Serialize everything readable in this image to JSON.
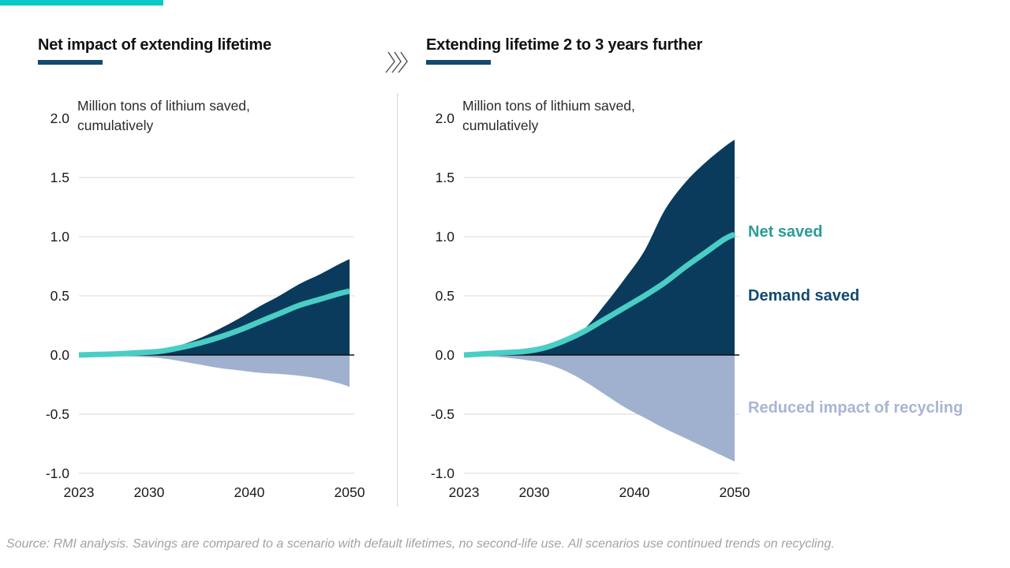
{
  "page": {
    "source_note": "Source: RMI analysis. Savings are compared to a scenario with default lifetimes, no second-life use. All scenarios use continued trends on recycling."
  },
  "colors": {
    "accent_teal": "#0cc9c5",
    "navy": "#0a3a5c",
    "navy_text": "#134a70",
    "teal_line": "#49cec5",
    "teal_text": "#2a9d96",
    "light_blue": "#9fb1ce",
    "light_blue_text": "#a8b6d3",
    "grid": "#d8d8d8",
    "zero_line": "#0d1117",
    "divider": "#d2d2d2"
  },
  "icons": {
    "separator": "triple-chevron-right-icon"
  },
  "legend": [
    {
      "label": "Net saved",
      "color": "#2a9d96"
    },
    {
      "label": "Demand saved",
      "color": "#134a70"
    },
    {
      "label": "Reduced impact of recycling",
      "color": "#a8b6d3"
    }
  ],
  "chart_data": [
    {
      "type": "area",
      "title": "Net impact of extending lifetime",
      "unit_label": "Million tons of lithium saved, cumulatively",
      "x": [
        2023,
        2025,
        2027,
        2029,
        2031,
        2033,
        2035,
        2037,
        2039,
        2041,
        2043,
        2045,
        2047,
        2049,
        2050
      ],
      "series": [
        {
          "name": "Demand saved",
          "kind": "area",
          "color": "#0a3a5c",
          "values": [
            0.0,
            0.005,
            0.01,
            0.02,
            0.04,
            0.08,
            0.14,
            0.22,
            0.31,
            0.41,
            0.5,
            0.6,
            0.68,
            0.77,
            0.81
          ]
        },
        {
          "name": "Reduced impact of recycling",
          "kind": "area",
          "color": "#9fb1ce",
          "values": [
            0.0,
            -0.005,
            -0.01,
            -0.015,
            -0.025,
            -0.05,
            -0.08,
            -0.11,
            -0.13,
            -0.15,
            -0.16,
            -0.175,
            -0.2,
            -0.24,
            -0.27
          ]
        },
        {
          "name": "Net saved",
          "kind": "line",
          "color": "#49cec5",
          "values": [
            0.0,
            0.005,
            0.01,
            0.02,
            0.03,
            0.06,
            0.1,
            0.15,
            0.21,
            0.28,
            0.35,
            0.42,
            0.47,
            0.52,
            0.54
          ]
        }
      ],
      "ylim": [
        -1.0,
        2.0
      ],
      "yticks": [
        2.0,
        1.5,
        1.0,
        0.5,
        0.0,
        -0.5,
        -1.0
      ],
      "xticks": [
        2023,
        2030,
        2040,
        2050
      ],
      "grid": true,
      "legend_position": "none"
    },
    {
      "type": "area",
      "title": "Extending lifetime 2 to 3 years further",
      "unit_label": "Million tons of lithium saved, cumulatively",
      "x": [
        2023,
        2025,
        2027,
        2029,
        2031,
        2033,
        2035,
        2037,
        2039,
        2041,
        2043,
        2045,
        2047,
        2049,
        2050
      ],
      "series": [
        {
          "name": "Demand saved",
          "kind": "area",
          "color": "#0a3a5c",
          "values": [
            0.0,
            0.01,
            0.02,
            0.03,
            0.06,
            0.12,
            0.22,
            0.42,
            0.64,
            0.88,
            1.22,
            1.45,
            1.62,
            1.76,
            1.82
          ]
        },
        {
          "name": "Reduced impact of recycling",
          "kind": "area",
          "color": "#9fb1ce",
          "values": [
            0.0,
            -0.01,
            -0.02,
            -0.04,
            -0.07,
            -0.13,
            -0.22,
            -0.33,
            -0.44,
            -0.53,
            -0.62,
            -0.7,
            -0.78,
            -0.86,
            -0.9
          ]
        },
        {
          "name": "Net saved",
          "kind": "line",
          "color": "#49cec5",
          "values": [
            0.0,
            0.01,
            0.02,
            0.03,
            0.06,
            0.12,
            0.2,
            0.3,
            0.4,
            0.5,
            0.61,
            0.74,
            0.86,
            0.98,
            1.02
          ]
        }
      ],
      "ylim": [
        -1.0,
        2.0
      ],
      "yticks": [
        2.0,
        1.5,
        1.0,
        0.5,
        0.0,
        -0.5,
        -1.0
      ],
      "xticks": [
        2023,
        2030,
        2040,
        2050
      ],
      "grid": true,
      "legend_position": "right"
    }
  ]
}
